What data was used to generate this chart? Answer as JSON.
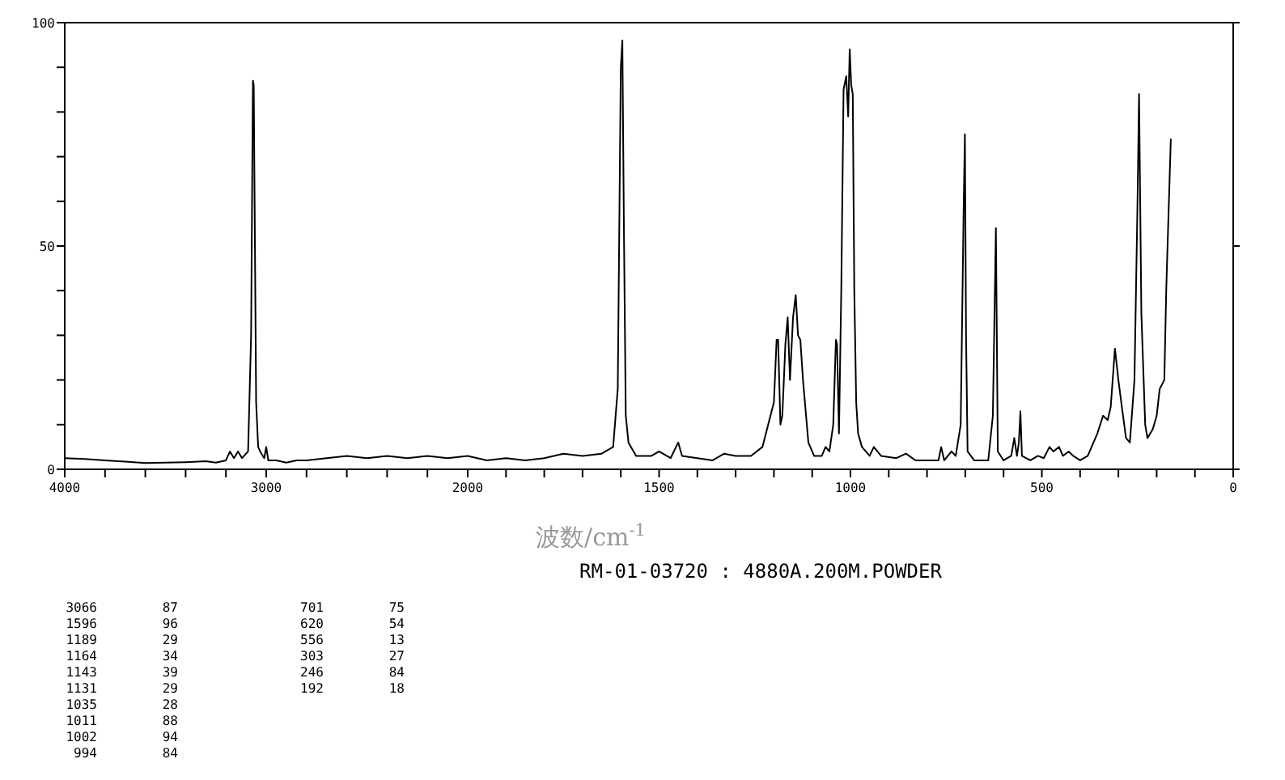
{
  "chart_data": [
    {
      "type": "line",
      "color": "#000000",
      "x": [
        4000,
        3900,
        3800,
        3700,
        3600,
        3500,
        3400,
        3300,
        3250,
        3200,
        3180,
        3160,
        3140,
        3120,
        3090,
        3075,
        3066,
        3062,
        3056,
        3050,
        3040,
        3030,
        3010,
        3000,
        2990,
        2950,
        2900,
        2850,
        2800,
        2700,
        2600,
        2500,
        2400,
        2300,
        2200,
        2100,
        2000
      ],
      "values": [
        2.5,
        2.3,
        2.0,
        1.7,
        1.4,
        1.5,
        1.6,
        1.8,
        1.5,
        2.0,
        4,
        2.5,
        4,
        2.5,
        4,
        30,
        87,
        86,
        50,
        15,
        5,
        4,
        2.5,
        5,
        2,
        2,
        1.5,
        2,
        2,
        2.5,
        3,
        2.5,
        3,
        2.5,
        3,
        2.5,
        3
      ],
      "xlim": [
        4000,
        2000
      ],
      "xticks": [
        4000,
        {
          "value": 3800,
          "label": null
        },
        {
          "value": 3600,
          "label": null
        },
        {
          "value": 3400,
          "label": null
        },
        {
          "value": 3200,
          "label": null
        },
        3000,
        {
          "value": 2800,
          "label": null
        },
        {
          "value": 2600,
          "label": null
        },
        {
          "value": 2400,
          "label": null
        },
        {
          "value": 2200,
          "label": null
        }
      ],
      "ylim": [
        0,
        100
      ],
      "yticks": [
        0,
        {
          "value": 10,
          "label": null
        },
        {
          "value": 20,
          "label": null
        },
        {
          "value": 30,
          "label": null
        },
        {
          "value": 40,
          "label": null
        },
        50,
        {
          "value": 60,
          "label": null
        },
        {
          "value": 70,
          "label": null
        },
        {
          "value": 80,
          "label": null
        },
        {
          "value": 90,
          "label": null
        },
        100
      ],
      "annotations": [
        "3066 87",
        "1596 96",
        "1189 29",
        "1164 34",
        "1143 39",
        "1131 29",
        "1035 28",
        "1011 88",
        "1002 94",
        "994 84",
        "701 75",
        "620 54",
        "556 13",
        "303 27",
        "246 84",
        "192 18"
      ]
    },
    {
      "type": "line",
      "color": "#000000",
      "title": "RM-01-03720 : 4880A.200M.POWDER",
      "xlabel": "波数/cm$^{-1}$",
      "x": [
        2000,
        1950,
        1900,
        1850,
        1800,
        1750,
        1700,
        1650,
        1620,
        1608,
        1600,
        1596,
        1592,
        1587,
        1580,
        1560,
        1520,
        1500,
        1470,
        1450,
        1440,
        1400,
        1360,
        1330,
        1300,
        1260,
        1230,
        1200,
        1193,
        1189,
        1183,
        1178,
        1170,
        1164,
        1158,
        1150,
        1143,
        1137,
        1131,
        1124,
        1110,
        1095,
        1075,
        1065,
        1055,
        1045,
        1038,
        1035,
        1030,
        1024,
        1018,
        1011,
        1006,
        1002,
        998,
        994,
        990,
        985,
        980,
        970,
        950,
        939,
        920,
        880,
        855,
        830,
        800,
        770,
        763,
        755,
        736,
        725,
        712,
        704,
        701,
        698,
        694,
        677,
        640,
        628,
        620,
        615,
        600,
        580,
        572,
        565,
        560,
        556,
        552,
        530,
        510,
        495,
        480,
        470,
        455,
        445,
        430,
        418,
        400,
        380,
        355,
        340,
        328,
        320,
        309,
        300,
        291,
        280,
        270,
        258,
        250,
        246,
        240,
        230,
        224,
        210,
        200,
        192,
        180,
        175,
        168,
        163
      ],
      "values": [
        3,
        2,
        2.5,
        2,
        2.5,
        3.5,
        3,
        3.5,
        5,
        18,
        90,
        96,
        55,
        12,
        6,
        3,
        3,
        4,
        2.5,
        6,
        3,
        2.5,
        2,
        3.5,
        3,
        3,
        5,
        15,
        29,
        29,
        10,
        12,
        28,
        34,
        20,
        34,
        39,
        30,
        29,
        20,
        6,
        3,
        3,
        5,
        4,
        10,
        29,
        28,
        8,
        40,
        85,
        88,
        79,
        94,
        86,
        84,
        40,
        15,
        8,
        5,
        3,
        5,
        3,
        2.5,
        3.5,
        2,
        2,
        2,
        5,
        2,
        4,
        3,
        10,
        60,
        75,
        30,
        4,
        2,
        2,
        12,
        54,
        4,
        2,
        3,
        7,
        3,
        6,
        13,
        3,
        2,
        3,
        2.5,
        5,
        4,
        5,
        3,
        4,
        3,
        2,
        3,
        8,
        12,
        11,
        14,
        27,
        20,
        14,
        7,
        6,
        20,
        60,
        84,
        35,
        10,
        7,
        9,
        12,
        18,
        20,
        40,
        60,
        74
      ],
      "xlim": [
        2000,
        0
      ],
      "xticks": [
        2000,
        {
          "value": 1900,
          "label": null
        },
        {
          "value": 1800,
          "label": null
        },
        {
          "value": 1700,
          "label": null
        },
        {
          "value": 1600,
          "label": null
        },
        1500,
        {
          "value": 1400,
          "label": null
        },
        {
          "value": 1300,
          "label": null
        },
        {
          "value": 1200,
          "label": null
        },
        {
          "value": 1100,
          "label": null
        },
        1000,
        {
          "value": 900,
          "label": null
        },
        {
          "value": 800,
          "label": null
        },
        {
          "value": 700,
          "label": null
        },
        {
          "value": 600,
          "label": null
        },
        500,
        {
          "value": 400,
          "label": null
        },
        {
          "value": 300,
          "label": null
        },
        {
          "value": 200,
          "label": null
        },
        {
          "value": 100,
          "label": null
        },
        0
      ],
      "ylim": [
        0,
        100
      ],
      "yticks": [
        0,
        50,
        100
      ],
      "tick_labels": "x"
    }
  ]
}
